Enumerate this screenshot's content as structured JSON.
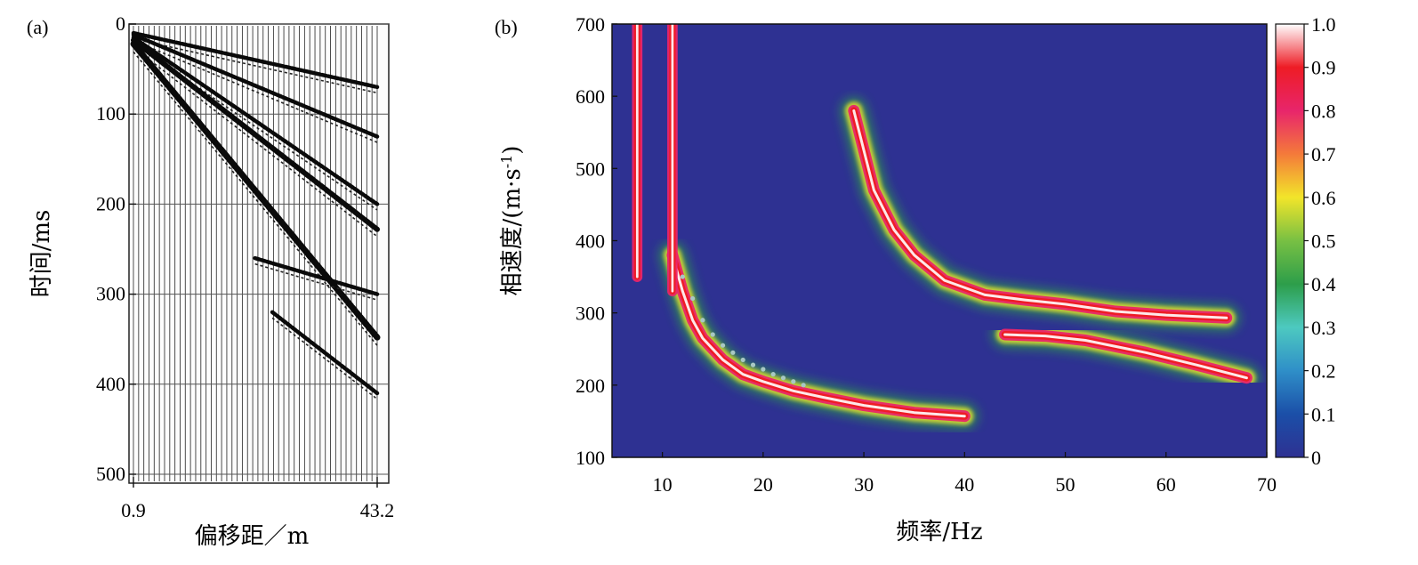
{
  "panel_a": {
    "label": "(a)",
    "chart_data": {
      "type": "seismogram",
      "ylabel": "时间/ms",
      "xlabel": "偏移距／m",
      "ylim": [
        0,
        500
      ],
      "yticks": [
        "0",
        "100",
        "200",
        "300",
        "400",
        "500"
      ],
      "xlim": [
        0.9,
        43.2
      ],
      "xticks": [
        "0.9",
        "43.2"
      ],
      "trace_count": 48,
      "grid": true,
      "events": [
        {
          "name": "event-1",
          "offset_m": [
            0.9,
            43.2
          ],
          "time_ms": [
            10,
            70
          ]
        },
        {
          "name": "event-2",
          "offset_m": [
            0.9,
            43.2
          ],
          "time_ms": [
            12,
            125
          ]
        },
        {
          "name": "event-3",
          "offset_m": [
            0.9,
            43.2
          ],
          "time_ms": [
            15,
            200
          ]
        },
        {
          "name": "event-4",
          "offset_m": [
            0.9,
            43.2
          ],
          "time_ms": [
            18,
            228
          ]
        },
        {
          "name": "event-5",
          "offset_m": [
            0.9,
            43.2
          ],
          "time_ms": [
            22,
            348
          ]
        },
        {
          "name": "event-6",
          "offset_m": [
            22,
            43.2
          ],
          "time_ms": [
            260,
            300
          ]
        },
        {
          "name": "event-7",
          "offset_m": [
            25,
            43.2
          ],
          "time_ms": [
            320,
            410
          ]
        }
      ]
    }
  },
  "panel_b": {
    "label": "(b)",
    "chart_data": {
      "type": "heatmap",
      "ylabel": "相速度/(m·s-1)",
      "ylabel_main": "相速度/(m·s",
      "ylabel_sup": "-1",
      "ylabel_end": ")",
      "xlabel": "频率/Hz",
      "xlim": [
        5,
        70
      ],
      "ylim": [
        100,
        700
      ],
      "xticks": [
        "10",
        "20",
        "30",
        "40",
        "50",
        "60",
        "70"
      ],
      "yticks": [
        "100",
        "200",
        "300",
        "400",
        "500",
        "600",
        "700"
      ],
      "colorbar": {
        "range": [
          0,
          1
        ],
        "ticks": [
          "0",
          "0.1",
          "0.2",
          "0.3",
          "0.4",
          "0.5",
          "0.6",
          "0.7",
          "0.8",
          "0.9",
          "1.0"
        ],
        "colors": [
          "#2e3192",
          "#1b4fa8",
          "#2f8fc8",
          "#4dc9c0",
          "#2d9e4a",
          "#78c043",
          "#f2e52a",
          "#f47a3a",
          "#e8256b",
          "#ee1c25",
          "#ffffff"
        ]
      },
      "ridges": [
        {
          "name": "fundamental-mode",
          "f": [
            11,
            12,
            13,
            14,
            16,
            18,
            20,
            23,
            26,
            30,
            35,
            40
          ],
          "v": [
            380,
            330,
            290,
            265,
            235,
            215,
            205,
            192,
            183,
            172,
            162,
            157
          ]
        },
        {
          "name": "higher-mode-1",
          "f": [
            29,
            31,
            33,
            35,
            38,
            42,
            46,
            50,
            55,
            60,
            66
          ],
          "v": [
            580,
            470,
            415,
            380,
            345,
            325,
            318,
            312,
            302,
            297,
            293
          ]
        },
        {
          "name": "higher-mode-2",
          "f": [
            44,
            48,
            52,
            58,
            63,
            68
          ],
          "v": [
            270,
            268,
            262,
            245,
            228,
            210
          ]
        },
        {
          "name": "low-freq-band-1",
          "f": [
            7.5,
            7.5
          ],
          "v": [
            350,
            700
          ]
        },
        {
          "name": "low-freq-band-2",
          "f": [
            11,
            11
          ],
          "v": [
            330,
            700
          ]
        }
      ],
      "picks": {
        "f": [
          12,
          13,
          14,
          15,
          16,
          17,
          18,
          19,
          20,
          21,
          22,
          23,
          24
        ],
        "v": [
          350,
          320,
          290,
          270,
          255,
          245,
          235,
          228,
          222,
          215,
          210,
          205,
          200
        ]
      }
    }
  }
}
